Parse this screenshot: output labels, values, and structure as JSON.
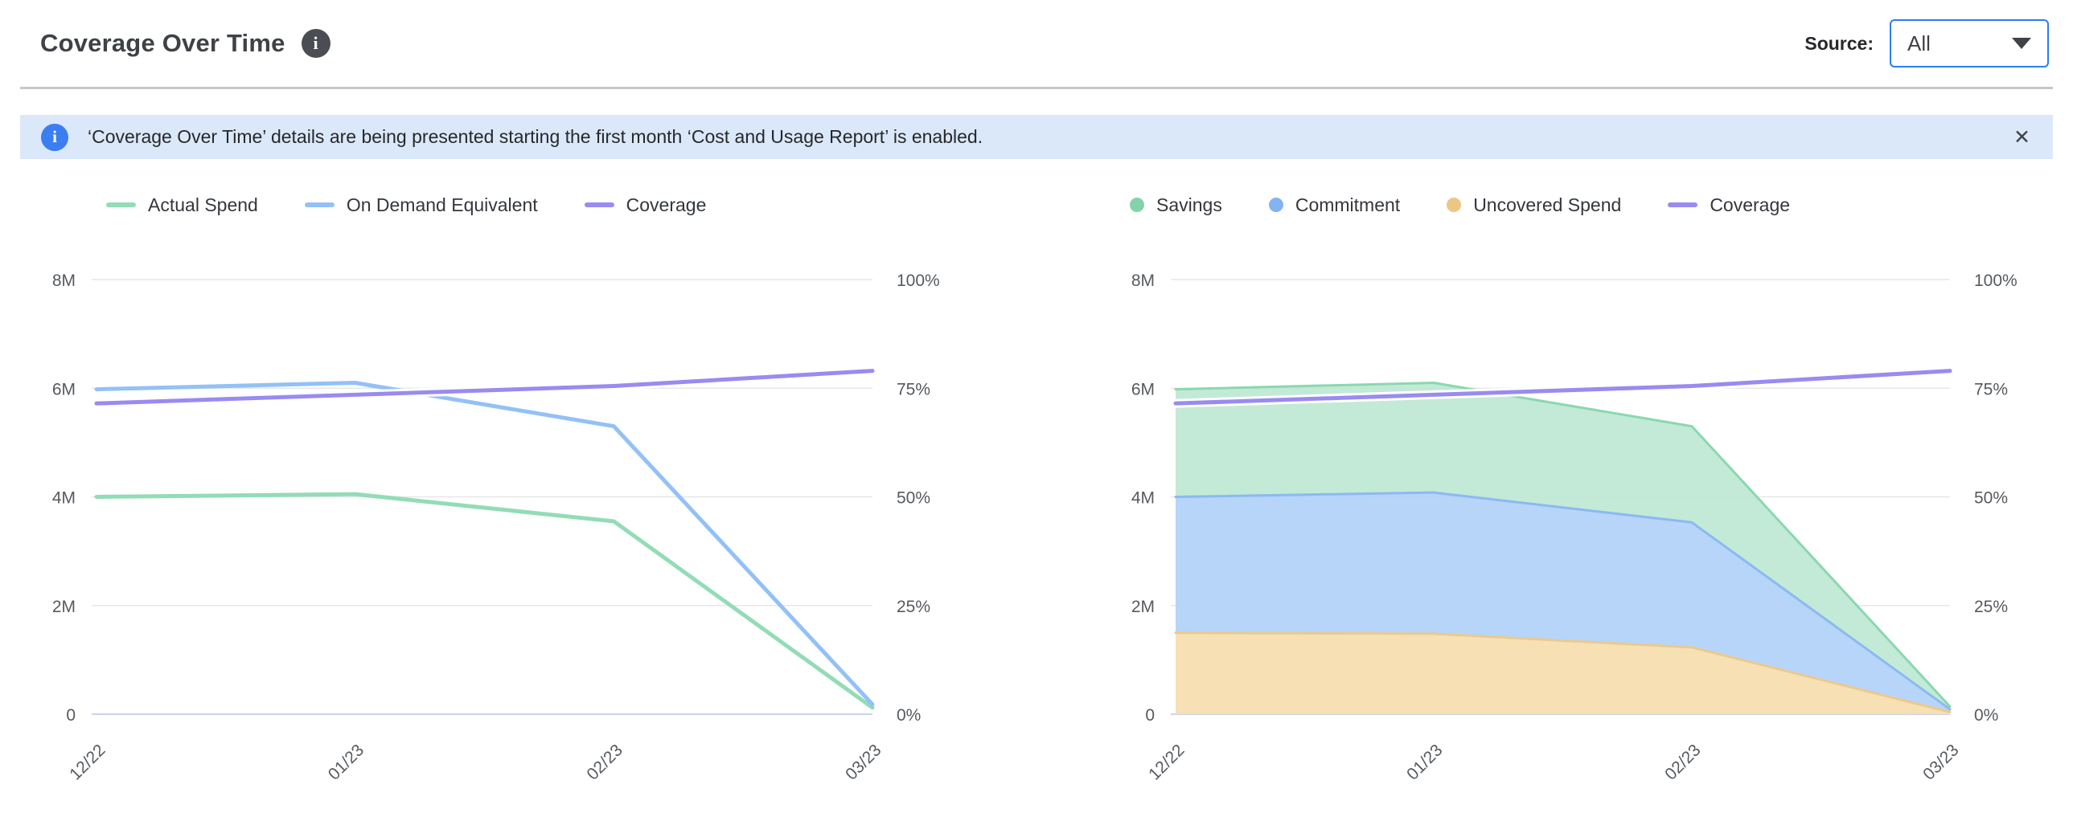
{
  "header": {
    "title": "Coverage Over Time",
    "source_label": "Source:",
    "source_value": "All"
  },
  "banner": {
    "text": "‘Coverage Over Time’ details are being presented starting the first month ‘Cost and Usage Report’ is enabled.",
    "close": "✕"
  },
  "colors": {
    "banner_bg": "#dbe8fa",
    "banner_icon_blue": "#3b7ef2",
    "dropdown_border_blue": "#2e7cf6",
    "divider_gray": "#c7c7c7",
    "grid_gray": "#e7e7e7",
    "axis_baseline": "#ccd6eb",
    "green": "#92dcb6",
    "blue": "#93c1f6",
    "purple": "#998bf0",
    "orange": "#ebc685"
  },
  "chart_data": [
    {
      "type": "line",
      "title": "",
      "categories": [
        "12/22",
        "01/23",
        "02/23",
        "03/23"
      ],
      "grid": true,
      "legend_position": "top-left",
      "y_left": {
        "label": "spend",
        "unit": "M",
        "min": 0,
        "max": 8,
        "ticks": [
          "8M",
          "6M",
          "4M",
          "2M",
          "0"
        ]
      },
      "y_right": {
        "label": "coverage",
        "unit": "%",
        "min": 0,
        "max": 100,
        "ticks": [
          "100%",
          "75%",
          "50%",
          "25%",
          "0%"
        ]
      },
      "series": [
        {
          "name": "Actual Spend",
          "kind": "line",
          "axis": "left",
          "color": "#92dcb6",
          "values": [
            4.0,
            4.05,
            3.55,
            0.12
          ]
        },
        {
          "name": "On Demand Equivalent",
          "kind": "line",
          "axis": "left",
          "color": "#93c1f6",
          "values": [
            5.98,
            6.1,
            5.3,
            0.18
          ]
        },
        {
          "name": "Coverage",
          "kind": "line",
          "axis": "right",
          "color": "#998bf0",
          "halo": true,
          "values": [
            71.5,
            73.5,
            75.5,
            79
          ]
        }
      ],
      "legend": [
        {
          "label": "Actual Spend",
          "marker": "line",
          "color": "#92dcb6"
        },
        {
          "label": "On Demand Equivalent",
          "marker": "line",
          "color": "#93c1f6"
        },
        {
          "label": "Coverage",
          "marker": "line",
          "color": "#998bf0"
        }
      ]
    },
    {
      "type": "area",
      "stacked": true,
      "title": "",
      "categories": [
        "12/22",
        "01/23",
        "02/23",
        "03/23"
      ],
      "grid": true,
      "legend_position": "top-left",
      "y_left": {
        "label": "spend",
        "unit": "M",
        "min": 0,
        "max": 8,
        "ticks": [
          "8M",
          "6M",
          "4M",
          "2M",
          "0"
        ]
      },
      "y_right": {
        "label": "coverage",
        "unit": "%",
        "min": 0,
        "max": 100,
        "ticks": [
          "100%",
          "75%",
          "50%",
          "25%",
          "0%"
        ]
      },
      "series": [
        {
          "name": "Uncovered Spend",
          "kind": "area",
          "axis": "left",
          "color": "#ecc98c",
          "fill": "#f5ddae",
          "values": [
            1.5,
            1.48,
            1.23,
            0.04
          ]
        },
        {
          "name": "Commitment",
          "kind": "area",
          "axis": "left",
          "color": "#8bb9f4",
          "fill": "#b0d1f8",
          "values": [
            2.5,
            2.6,
            2.3,
            0.05
          ]
        },
        {
          "name": "Savings",
          "kind": "area",
          "axis": "left",
          "color": "#8ad8b0",
          "fill": "#bee8d3",
          "values": [
            1.98,
            2.02,
            1.77,
            0.05
          ]
        },
        {
          "name": "Coverage",
          "kind": "line",
          "axis": "right",
          "color": "#998bf0",
          "halo": true,
          "values": [
            71.5,
            73.5,
            75.5,
            79
          ]
        }
      ],
      "legend": [
        {
          "label": "Savings",
          "marker": "circle",
          "color": "#84d2a9"
        },
        {
          "label": "Commitment",
          "marker": "circle",
          "color": "#82b4f2"
        },
        {
          "label": "Uncovered Spend",
          "marker": "circle",
          "color": "#ebc685"
        },
        {
          "label": "Coverage",
          "marker": "line",
          "color": "#998bf0"
        }
      ]
    }
  ]
}
